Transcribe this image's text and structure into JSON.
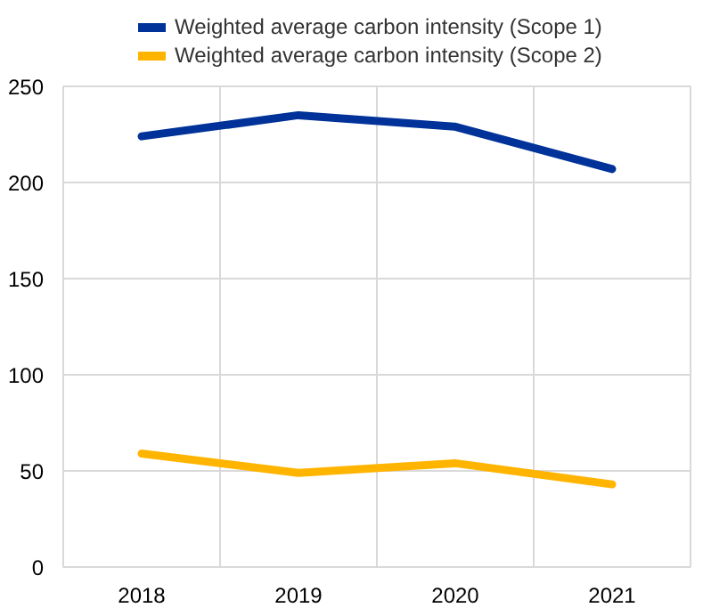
{
  "chart_data": {
    "type": "line",
    "categories": [
      "2018",
      "2019",
      "2020",
      "2021"
    ],
    "series": [
      {
        "name": "Weighted average carbon intensity (Scope 1)",
        "color": "#003299",
        "values": [
          224,
          235,
          229,
          207
        ]
      },
      {
        "name": "Weighted average carbon intensity (Scope 2)",
        "color": "#ffb400",
        "values": [
          59,
          49,
          54,
          43
        ]
      }
    ],
    "ylim": [
      0,
      250
    ],
    "yticks": [
      0,
      50,
      100,
      150,
      200,
      250
    ],
    "grid": true,
    "legend": "top",
    "line_style": "solid",
    "marker": "none"
  }
}
